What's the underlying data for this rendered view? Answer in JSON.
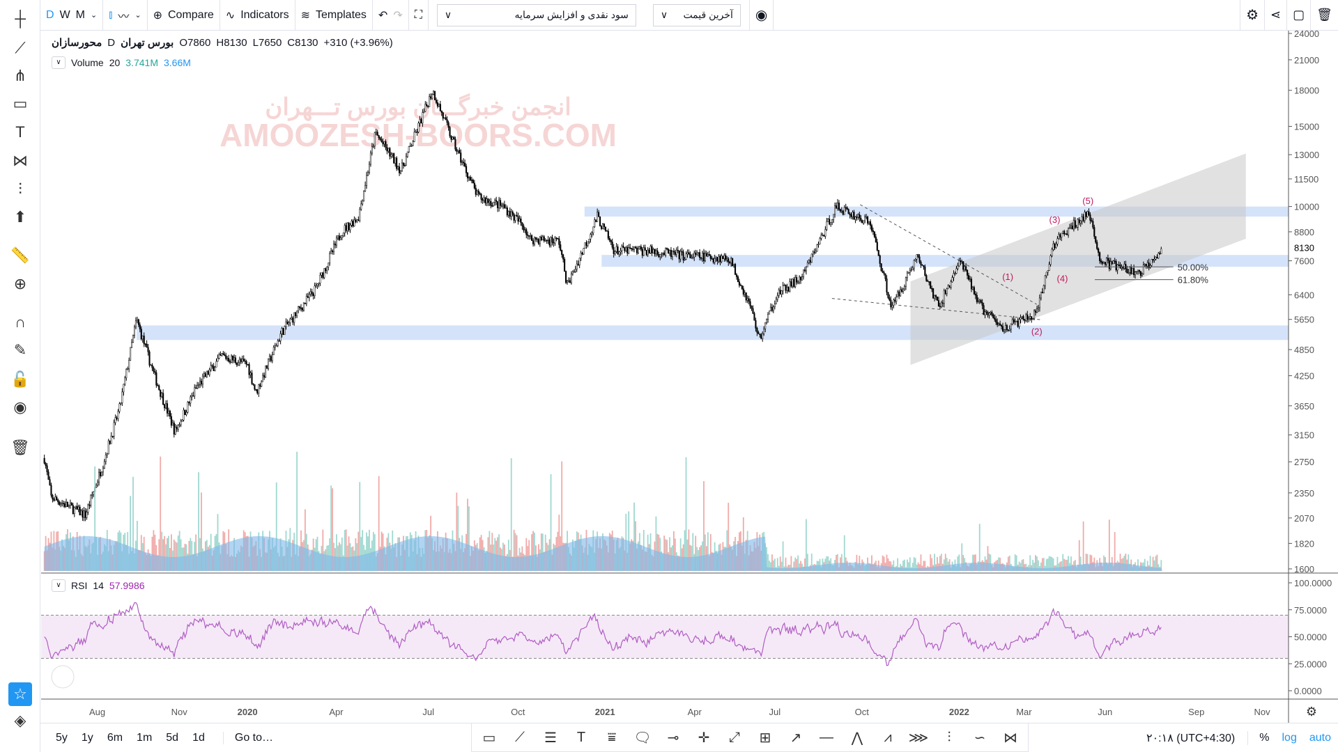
{
  "toolbar": {
    "intervals": [
      "D",
      "W",
      "M"
    ],
    "active_interval": "D",
    "compare": "Compare",
    "indicators": "Indicators",
    "templates": "Templates",
    "study_select": "سود نقدی و افزایش سرمایه",
    "price_select": "آخرین قیمت"
  },
  "legend": {
    "symbol": "محورسازان",
    "interval": "D",
    "exchange": "بورس تهران",
    "open": "O7860",
    "high": "H8130",
    "low": "L7650",
    "close": "C8130",
    "change": "+310 (+3.96%)"
  },
  "volume": {
    "label": "Volume",
    "period": "20",
    "value1": "3.741M",
    "value2": "3.66M"
  },
  "rsi": {
    "label": "RSI",
    "period": "14",
    "value": "57.9986"
  },
  "watermark": {
    "line1": "انجمن خبرگـــان بورس تـــهران",
    "line2": "AMOOZESH-BOORS.COM"
  },
  "price_axis": [
    "24000",
    "21000",
    "18000",
    "15000",
    "13000",
    "11500",
    "10000",
    "8800",
    "7600",
    "6400",
    "5650",
    "4850",
    "4250",
    "3650",
    "3150",
    "2750",
    "2350",
    "2070",
    "1820",
    "1600"
  ],
  "last_price": "8130",
  "rsi_axis": [
    "100.0000",
    "75.0000",
    "50.0000",
    "25.0000",
    "0.0000"
  ],
  "time_axis": [
    "Aug",
    "Nov",
    "2020",
    "Apr",
    "Jul",
    "Oct",
    "2021",
    "Apr",
    "Jul",
    "Oct",
    "2022",
    "Mar",
    "Jun",
    "Sep",
    "Nov"
  ],
  "annotations": {
    "waves": [
      "(1)",
      "(2)",
      "(3)",
      "(4)",
      "(5)"
    ],
    "fib": [
      "50.00%",
      "61.80%"
    ]
  },
  "bottom": {
    "ranges": [
      "5y",
      "1y",
      "6m",
      "1m",
      "5d",
      "1d"
    ],
    "goto": "Go to…",
    "time": "۲۰:۱۸ (UTC+4:30)",
    "percent": "%",
    "log": "log",
    "auto": "auto"
  },
  "colors": {
    "accent": "#2196f3",
    "up": "#26a69a",
    "rsi": "#9c27b0",
    "zone": "#c9dcf7",
    "wave": "#c2185b"
  }
}
